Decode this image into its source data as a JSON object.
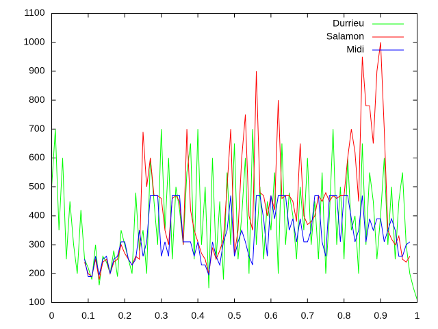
{
  "chart_data": {
    "type": "line",
    "x": [
      0,
      0.01,
      0.02,
      0.03,
      0.04,
      0.05,
      0.06,
      0.07,
      0.08,
      0.09,
      0.1,
      0.11,
      0.12,
      0.13,
      0.14,
      0.15,
      0.16,
      0.17,
      0.18,
      0.19,
      0.2,
      0.21,
      0.22,
      0.23,
      0.24,
      0.25,
      0.26,
      0.27,
      0.28,
      0.29,
      0.3,
      0.31,
      0.32,
      0.33,
      0.34,
      0.35,
      0.36,
      0.37,
      0.38,
      0.39,
      0.4,
      0.41,
      0.42,
      0.43,
      0.44,
      0.45,
      0.46,
      0.47,
      0.48,
      0.49,
      0.5,
      0.51,
      0.52,
      0.53,
      0.54,
      0.55,
      0.56,
      0.57,
      0.58,
      0.59,
      0.6,
      0.61,
      0.62,
      0.63,
      0.64,
      0.65,
      0.66,
      0.67,
      0.68,
      0.69,
      0.7,
      0.71,
      0.72,
      0.73,
      0.74,
      0.75,
      0.76,
      0.77,
      0.78,
      0.79,
      0.8,
      0.81,
      0.82,
      0.83,
      0.84,
      0.85,
      0.86,
      0.87,
      0.88,
      0.89,
      0.9,
      0.91,
      0.92,
      0.93,
      0.94,
      0.95,
      0.96,
      0.97,
      0.98,
      0.99,
      1
    ],
    "series": [
      {
        "name": "Durrieu",
        "color": "#00ff00",
        "values": [
          500,
          700,
          350,
          600,
          250,
          450,
          300,
          200,
          420,
          250,
          220,
          180,
          300,
          160,
          260,
          240,
          200,
          280,
          190,
          350,
          300,
          250,
          200,
          480,
          280,
          350,
          200,
          600,
          450,
          300,
          700,
          350,
          600,
          250,
          500,
          420,
          300,
          550,
          650,
          250,
          700,
          300,
          500,
          150,
          600,
          250,
          450,
          180,
          550,
          300,
          650,
          250,
          400,
          600,
          200,
          700,
          300,
          500,
          250,
          450,
          350,
          550,
          200,
          650,
          300,
          480,
          400,
          250,
          500,
          350,
          600,
          300,
          450,
          250,
          550,
          200,
          400,
          700,
          300,
          500,
          250,
          600,
          350,
          400,
          200,
          650,
          300,
          550,
          450,
          250,
          400,
          600,
          300,
          500,
          250,
          450,
          550,
          300,
          200,
          150,
          110
        ]
      },
      {
        "name": "Salamon",
        "color": "#ff0000",
        "values": [
          null,
          null,
          null,
          null,
          null,
          null,
          null,
          null,
          null,
          240,
          200,
          190,
          250,
          180,
          240,
          250,
          200,
          240,
          250,
          300,
          270,
          250,
          230,
          260,
          250,
          690,
          500,
          600,
          470,
          470,
          460,
          350,
          300,
          460,
          470,
          450,
          300,
          700,
          420,
          350,
          310,
          270,
          250,
          200,
          290,
          250,
          280,
          320,
          500,
          700,
          270,
          350,
          600,
          750,
          400,
          350,
          900,
          480,
          470,
          400,
          470,
          420,
          800,
          460,
          470,
          470,
          450,
          380,
          650,
          400,
          370,
          380,
          400,
          470,
          450,
          480,
          450,
          470,
          460,
          470,
          470,
          600,
          700,
          620,
          450,
          950,
          780,
          780,
          650,
          900,
          1000,
          700,
          350,
          320,
          300,
          330,
          250,
          240,
          260,
          null,
          null
        ]
      },
      {
        "name": "Midi",
        "color": "#0000ff",
        "values": [
          null,
          null,
          null,
          null,
          null,
          null,
          null,
          null,
          null,
          250,
          190,
          190,
          260,
          195,
          250,
          260,
          200,
          250,
          260,
          310,
          310,
          250,
          230,
          250,
          350,
          260,
          310,
          470,
          470,
          470,
          260,
          310,
          260,
          470,
          470,
          470,
          310,
          310,
          310,
          260,
          310,
          230,
          230,
          195,
          310,
          260,
          230,
          310,
          350,
          470,
          260,
          310,
          350,
          310,
          260,
          230,
          470,
          470,
          390,
          260,
          470,
          390,
          470,
          470,
          470,
          350,
          390,
          310,
          390,
          310,
          310,
          350,
          470,
          470,
          310,
          260,
          470,
          470,
          470,
          310,
          470,
          470,
          390,
          310,
          350,
          470,
          310,
          390,
          350,
          390,
          390,
          310,
          350,
          390,
          350,
          260,
          260,
          300,
          310,
          null,
          null
        ]
      }
    ],
    "xlim": [
      0,
      1
    ],
    "xticks": [
      0,
      0.1,
      0.2,
      0.3,
      0.4,
      0.5,
      0.6,
      0.7,
      0.8,
      0.9,
      1
    ],
    "ylim": [
      100,
      1100
    ],
    "yticks": [
      100,
      200,
      300,
      400,
      500,
      600,
      700,
      800,
      900,
      1000,
      1100
    ],
    "legend": "top-right"
  }
}
